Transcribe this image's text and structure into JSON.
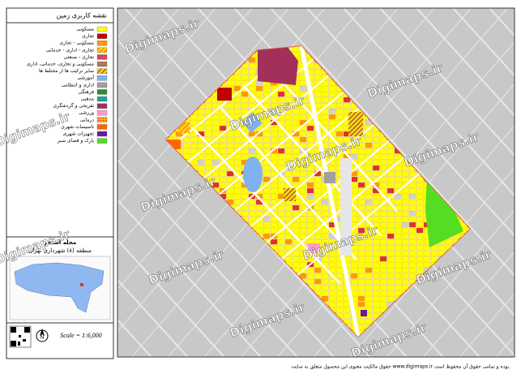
{
  "header": {
    "title": "نقشه کاربری زمین"
  },
  "legend": {
    "items": [
      {
        "label": "مسکونی",
        "color": "#ffff00"
      },
      {
        "label": "تجاری",
        "color": "#c00000"
      },
      {
        "label": "مسکونی - تجاری",
        "color": "#ff9900"
      },
      {
        "label": "تجاری - اداری - خدماتی",
        "color": "hatch-orange"
      },
      {
        "label": "تجاری - صنعتی",
        "color": "#d9435e"
      },
      {
        "label": "مسکونی و تجاری، خدماتی، اداری",
        "color": "#b07a55"
      },
      {
        "label": "سایر ترکیب ها از مختلط ها",
        "color": "hatch-brown"
      },
      {
        "label": "آموزشی",
        "color": "#7fb2f0"
      },
      {
        "label": "اداری و انتظامی",
        "color": "#a0a0a0"
      },
      {
        "label": "فرهنگی",
        "color": "#2e8b2e"
      },
      {
        "label": "مذهبی",
        "color": "#1fa39a"
      },
      {
        "label": "تفریحی و گردشگری",
        "color": "#a3305a"
      },
      {
        "label": "ورزشی",
        "color": "#ff99cc"
      },
      {
        "label": "درمانی",
        "color": "hatch-red"
      },
      {
        "label": "تاسیسات شهری",
        "color": "#ff6600"
      },
      {
        "label": "تجهیزات شهری",
        "color": "#6a1b9a"
      },
      {
        "label": "پارک و فضای سبز",
        "color": "#55dd22"
      }
    ]
  },
  "location": {
    "title": "محله استخر",
    "subtitle": "منطقه (۸) شهرداری تهران"
  },
  "scale": "Scale = 1:6,000",
  "watermark": "Digimaps.ir",
  "footer": "حقوق مالکیت معنوی این محصول متعلق به سایت www.digimaps.ir بوده و تمامی حقوق آن محفوظ است."
}
